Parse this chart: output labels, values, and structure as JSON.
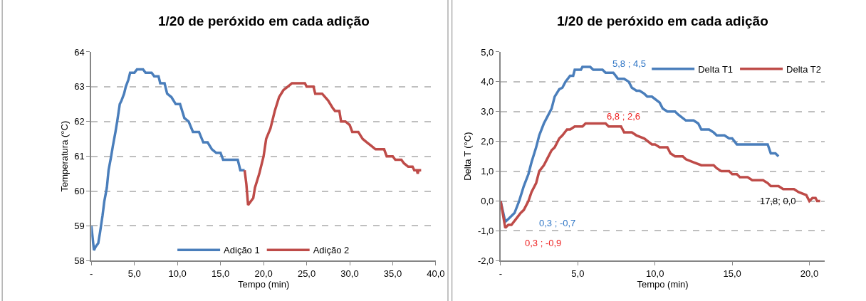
{
  "chart_data": [
    {
      "type": "line",
      "title": "1/20 de peróxido em cada adição",
      "xlabel": "Tempo (min)",
      "ylabel": "Temperatura (°C)",
      "xlim": [
        0,
        40
      ],
      "xticks": [
        {
          "value": 0,
          "label": "-"
        },
        {
          "value": 5,
          "label": "5,0"
        },
        {
          "value": 10,
          "label": "10,0"
        },
        {
          "value": 15,
          "label": "15,0"
        },
        {
          "value": 20,
          "label": "20,0"
        },
        {
          "value": 25,
          "label": "25,0"
        },
        {
          "value": 30,
          "label": "30,0"
        },
        {
          "value": 35,
          "label": "35,0"
        },
        {
          "value": 40,
          "label": "40,0"
        }
      ],
      "ylim": [
        58,
        64
      ],
      "yticks": [
        58,
        59,
        60,
        61,
        62,
        63,
        64
      ],
      "grid": "y",
      "legend": "bottom",
      "marker": "none",
      "line_style": "solid",
      "series": [
        {
          "name": "Adição 1",
          "color": "#4a7ebb",
          "x": [
            0,
            0.3,
            0.5,
            0.8,
            1.0,
            1.3,
            1.5,
            1.8,
            2.0,
            2.3,
            2.5,
            2.8,
            3.0,
            3.3,
            3.5,
            3.8,
            4.0,
            4.3,
            4.5,
            5.0,
            5.3,
            6.0,
            6.3,
            7.0,
            7.3,
            7.8,
            8.0,
            8.5,
            8.8,
            9.3,
            9.8,
            10.3,
            10.8,
            11.3,
            11.8,
            12.5,
            13.0,
            13.5,
            14.0,
            14.5,
            15.0,
            15.3,
            17.0,
            17.3,
            17.8
          ],
          "values": [
            59,
            58.3,
            58.4,
            58.5,
            58.8,
            59.3,
            59.7,
            60.1,
            60.6,
            61.0,
            61.3,
            61.7,
            62.0,
            62.5,
            62.6,
            62.8,
            63.0,
            63.2,
            63.4,
            63.4,
            63.5,
            63.5,
            63.4,
            63.4,
            63.3,
            63.3,
            63.1,
            63.1,
            62.8,
            62.7,
            62.5,
            62.5,
            62.1,
            62.0,
            61.7,
            61.7,
            61.4,
            61.4,
            61.2,
            61.1,
            61.1,
            60.9,
            60.9,
            60.6,
            60.6
          ]
        },
        {
          "name": "Adição 2",
          "color": "#be4b48",
          "x": [
            17.8,
            18.0,
            18.2,
            18.5,
            18.8,
            19.0,
            19.5,
            20.0,
            20.3,
            20.8,
            21.3,
            21.8,
            22.3,
            22.8,
            23.3,
            24.8,
            25.0,
            25.8,
            26.0,
            26.8,
            27.5,
            28.0,
            28.3,
            28.8,
            29.0,
            29.5,
            30.0,
            30.3,
            31.0,
            31.5,
            32.0,
            32.5,
            33.0,
            34.0,
            34.3,
            35.0,
            35.3,
            36.0,
            36.3,
            36.8,
            37.3,
            37.5,
            37.8,
            37.9,
            38.0,
            38.3
          ],
          "values": [
            60.6,
            60.2,
            59.6,
            59.7,
            59.8,
            60.1,
            60.5,
            61.0,
            61.5,
            61.8,
            62.3,
            62.7,
            62.9,
            63.0,
            63.1,
            63.1,
            63.0,
            63.0,
            62.8,
            62.8,
            62.6,
            62.4,
            62.3,
            62.3,
            62.0,
            62.0,
            61.9,
            61.7,
            61.7,
            61.5,
            61.4,
            61.3,
            61.2,
            61.2,
            61.0,
            61.0,
            60.9,
            60.9,
            60.8,
            60.7,
            60.7,
            60.6,
            60.6,
            60.5,
            60.6,
            60.6
          ]
        }
      ]
    },
    {
      "type": "line",
      "title": "1/20 de peróxido em cada adição",
      "xlabel": "Tempo (min)",
      "ylabel": "Delta T (°C)",
      "xlim": [
        0,
        21
      ],
      "xticks": [
        {
          "value": 0,
          "label": "-"
        },
        {
          "value": 5,
          "label": "5,0"
        },
        {
          "value": 10,
          "label": "10,0"
        },
        {
          "value": 15,
          "label": "15,0"
        },
        {
          "value": 20,
          "label": "20,0"
        }
      ],
      "ylim": [
        -2,
        5
      ],
      "yticks": [
        {
          "value": -2,
          "label": "-2,0"
        },
        {
          "value": -1,
          "label": "-1,0"
        },
        {
          "value": 0,
          "label": "0,0"
        },
        {
          "value": 1,
          "label": "1,0"
        },
        {
          "value": 2,
          "label": "2,0"
        },
        {
          "value": 3,
          "label": "3,0"
        },
        {
          "value": 4,
          "label": "4,0"
        },
        {
          "value": 5,
          "label": "5,0"
        }
      ],
      "grid": "y",
      "legend": "top right",
      "marker": "none",
      "line_style": "solid",
      "annotations": [
        {
          "text": "5,8 ; 4,5",
          "x": 5.8,
          "y": 4.5
        },
        {
          "text": "6,8 ; 2,6",
          "x": 6.8,
          "y": 2.6
        },
        "0,3 ; -0,7",
        "0,3 ; -0,9",
        "17,8; 0,0"
      ],
      "series": [
        {
          "name": "Delta T1",
          "color": "#4a7ebb",
          "x": [
            0,
            0.3,
            0.5,
            0.9,
            1.2,
            1.5,
            1.8,
            2.0,
            2.3,
            2.5,
            2.8,
            3.0,
            3.3,
            3.5,
            3.8,
            4.0,
            4.2,
            4.5,
            4.7,
            4.8,
            5.2,
            5.3,
            5.8,
            6.0,
            6.6,
            6.8,
            7.3,
            7.6,
            8.0,
            8.3,
            8.5,
            8.8,
            9.0,
            9.3,
            9.5,
            9.8,
            10.3,
            10.5,
            10.8,
            11.3,
            11.5,
            12.0,
            12.5,
            12.8,
            13.0,
            13.5,
            13.8,
            14.0,
            14.5,
            14.8,
            15.0,
            15.3,
            17.3,
            17.5,
            17.8,
            18.0
          ],
          "values": [
            0,
            -0.7,
            -0.6,
            -0.4,
            0,
            0.5,
            0.9,
            1.3,
            1.8,
            2.2,
            2.6,
            2.8,
            3.1,
            3.5,
            3.75,
            3.8,
            4.0,
            4.2,
            4.2,
            4.4,
            4.4,
            4.5,
            4.5,
            4.4,
            4.4,
            4.3,
            4.3,
            4.1,
            4.1,
            4.0,
            3.8,
            3.7,
            3.7,
            3.6,
            3.5,
            3.5,
            3.3,
            3.1,
            3.0,
            3.0,
            2.9,
            2.7,
            2.7,
            2.6,
            2.4,
            2.4,
            2.3,
            2.2,
            2.2,
            2.1,
            2.1,
            1.9,
            1.9,
            1.6,
            1.6,
            1.5
          ]
        },
        {
          "name": "Delta T2",
          "color": "#be4b48",
          "x": [
            0,
            0.3,
            0.5,
            0.7,
            1.0,
            1.3,
            1.5,
            1.8,
            2.0,
            2.3,
            2.5,
            2.8,
            3.0,
            3.3,
            3.5,
            3.8,
            4.0,
            4.3,
            4.5,
            4.8,
            5.3,
            5.5,
            6.8,
            7.0,
            7.8,
            8.0,
            8.5,
            8.8,
            9.3,
            9.8,
            10.0,
            10.3,
            10.8,
            11.0,
            11.3,
            11.8,
            12.0,
            12.5,
            13.0,
            13.8,
            14.0,
            14.3,
            14.8,
            15.0,
            15.3,
            15.5,
            16.0,
            16.3,
            17.0,
            17.3,
            17.5,
            18.0,
            18.3,
            19.0,
            19.3,
            19.8,
            20.0,
            20.2,
            20.4,
            20.5,
            20.7
          ],
          "values": [
            0,
            -0.9,
            -0.8,
            -0.8,
            -0.6,
            -0.4,
            -0.3,
            0,
            0.3,
            0.6,
            1.0,
            1.2,
            1.4,
            1.7,
            1.8,
            2.1,
            2.2,
            2.4,
            2.4,
            2.5,
            2.5,
            2.6,
            2.6,
            2.5,
            2.5,
            2.3,
            2.3,
            2.2,
            2.1,
            1.9,
            1.9,
            1.8,
            1.8,
            1.6,
            1.5,
            1.5,
            1.4,
            1.3,
            1.2,
            1.2,
            1.1,
            1.0,
            1.0,
            0.9,
            0.9,
            0.8,
            0.8,
            0.7,
            0.7,
            0.6,
            0.5,
            0.5,
            0.4,
            0.4,
            0.3,
            0.2,
            0.0,
            0.1,
            0.1,
            0.0,
            0.0
          ]
        }
      ]
    }
  ]
}
